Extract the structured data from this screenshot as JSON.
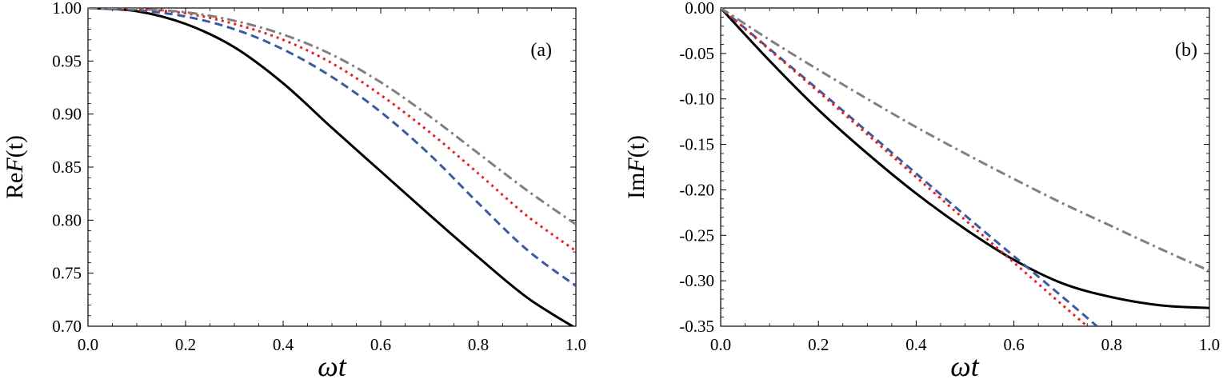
{
  "chart_data": [
    {
      "type": "line",
      "panel_label": "(a)",
      "xlabel": "ωt",
      "ylabel": "ReF(t)",
      "ylabel_prefix": "Re",
      "ylabel_func": "F",
      "ylabel_arg": "(t)",
      "xlim": [
        0.0,
        1.0
      ],
      "ylim": [
        0.7,
        1.0
      ],
      "xticks": [
        "0.0",
        "0.2",
        "0.4",
        "0.6",
        "0.8",
        "1.0"
      ],
      "yticks": [
        "0.70",
        "0.75",
        "0.80",
        "0.85",
        "0.90",
        "0.95",
        "1.00"
      ],
      "x": [
        0.0,
        0.1,
        0.2,
        0.3,
        0.4,
        0.5,
        0.6,
        0.7,
        0.8,
        0.9,
        1.0
      ],
      "series": [
        {
          "name": "solid",
          "color": "#000000",
          "dash": "",
          "values": [
            1.0,
            0.997,
            0.985,
            0.963,
            0.929,
            0.887,
            0.846,
            0.805,
            0.765,
            0.727,
            0.698
          ]
        },
        {
          "name": "dashed",
          "color": "#3a5ba0",
          "dash": "10,6",
          "values": [
            1.0,
            0.998,
            0.992,
            0.98,
            0.961,
            0.935,
            0.902,
            0.862,
            0.816,
            0.772,
            0.738
          ]
        },
        {
          "name": "dotted",
          "color": "#e8201f",
          "dash": "3,5",
          "values": [
            1.0,
            0.999,
            0.995,
            0.985,
            0.97,
            0.948,
            0.918,
            0.883,
            0.844,
            0.804,
            0.771
          ]
        },
        {
          "name": "dash-dot",
          "color": "#808080",
          "dash": "12,5,3,5",
          "values": [
            1.0,
            0.999,
            0.996,
            0.988,
            0.975,
            0.956,
            0.93,
            0.898,
            0.863,
            0.828,
            0.796
          ]
        }
      ]
    },
    {
      "type": "line",
      "panel_label": "(b)",
      "xlabel": "ωt",
      "ylabel": "ImF(t)",
      "ylabel_prefix": "Im",
      "ylabel_func": "F",
      "ylabel_arg": "(t)",
      "xlim": [
        0.0,
        1.0
      ],
      "ylim": [
        -0.35,
        0.0
      ],
      "xticks": [
        "0.0",
        "0.2",
        "0.4",
        "0.6",
        "0.8",
        "1.0"
      ],
      "yticks": [
        "-0.35",
        "-0.30",
        "-0.25",
        "-0.20",
        "-0.15",
        "-0.10",
        "-0.05",
        "0.00"
      ],
      "series": [
        {
          "name": "solid",
          "color": "#000000",
          "dash": "",
          "x": [
            0.0,
            0.1,
            0.2,
            0.3,
            0.4,
            0.5,
            0.6,
            0.7,
            0.8,
            0.9,
            1.0
          ],
          "values": [
            0.0,
            -0.058,
            -0.112,
            -0.16,
            -0.204,
            -0.243,
            -0.277,
            -0.303,
            -0.318,
            -0.327,
            -0.33
          ]
        },
        {
          "name": "dashed",
          "color": "#3a5ba0",
          "dash": "10,6",
          "x": [
            0.0,
            0.1,
            0.2,
            0.3,
            0.4,
            0.5,
            0.6,
            0.7,
            0.77
          ],
          "values": [
            0.0,
            -0.045,
            -0.09,
            -0.136,
            -0.182,
            -0.228,
            -0.273,
            -0.318,
            -0.35
          ]
        },
        {
          "name": "dotted",
          "color": "#e8201f",
          "dash": "3,5",
          "x": [
            0.0,
            0.1,
            0.2,
            0.3,
            0.4,
            0.5,
            0.6,
            0.7,
            0.75
          ],
          "values": [
            0.0,
            -0.046,
            -0.092,
            -0.139,
            -0.186,
            -0.233,
            -0.28,
            -0.327,
            -0.35
          ]
        },
        {
          "name": "dash-dot",
          "color": "#808080",
          "dash": "12,5,3,5",
          "x": [
            0.0,
            0.1,
            0.2,
            0.3,
            0.4,
            0.5,
            0.6,
            0.7,
            0.8,
            0.9,
            1.0
          ],
          "values": [
            0.0,
            -0.035,
            -0.068,
            -0.1,
            -0.131,
            -0.16,
            -0.188,
            -0.215,
            -0.24,
            -0.265,
            -0.289
          ]
        }
      ]
    }
  ]
}
